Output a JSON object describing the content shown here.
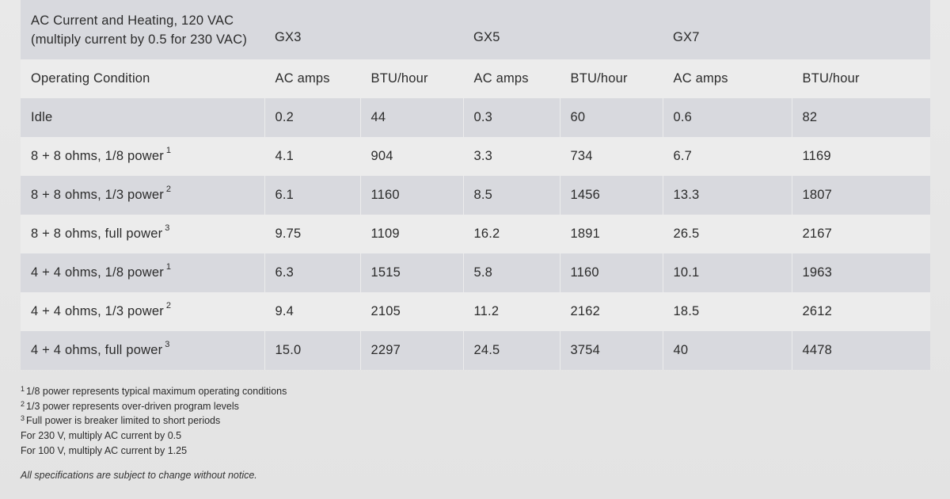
{
  "table": {
    "title_line1": "AC Current and Heating, 120 VAC",
    "title_line2": "(multiply current by 0.5 for 230 VAC)",
    "models": [
      "GX3",
      "GX5",
      "GX7"
    ],
    "header": {
      "condition": "Operating Condition",
      "amps": "AC amps",
      "btu": "BTU/hour"
    },
    "rows": [
      {
        "label": "Idle",
        "sup": "",
        "cells": [
          "0.2",
          "44",
          "0.3",
          "60",
          "0.6",
          "82"
        ]
      },
      {
        "label": "8 + 8 ohms, 1/8 power",
        "sup": "1",
        "cells": [
          "4.1",
          "904",
          "3.3",
          "734",
          "6.7",
          "1169"
        ]
      },
      {
        "label": "8 + 8 ohms, 1/3 power",
        "sup": "2",
        "cells": [
          "6.1",
          "1160",
          "8.5",
          "1456",
          "13.3",
          "1807"
        ]
      },
      {
        "label": "8 + 8 ohms, full power",
        "sup": "3",
        "cells": [
          "9.75",
          "1109",
          "16.2",
          "1891",
          "26.5",
          "2167"
        ]
      },
      {
        "label": "4 + 4 ohms, 1/8 power",
        "sup": "1",
        "cells": [
          "6.3",
          "1515",
          "5.8",
          "1160",
          "10.1",
          "1963"
        ]
      },
      {
        "label": "4 + 4 ohms, 1/3 power",
        "sup": "2",
        "cells": [
          "9.4",
          "2105",
          "11.2",
          "2162",
          "18.5",
          "2612"
        ]
      },
      {
        "label": "4 + 4 ohms, full power",
        "sup": "3",
        "cells": [
          "15.0",
          "2297",
          "24.5",
          "3754",
          "40",
          "4478"
        ]
      }
    ]
  },
  "footnotes": [
    {
      "sup": "1",
      "text": "1/8 power represents typical maximum operating conditions"
    },
    {
      "sup": "2",
      "text": "1/3 power represents over-driven program levels"
    },
    {
      "sup": "3",
      "text": "Full power is breaker limited to short periods"
    },
    {
      "sup": "",
      "text": "For 230 V, multiply AC current by 0.5"
    },
    {
      "sup": "",
      "text": "For 100 V, multiply AC current by 1.25"
    }
  ],
  "disclaimer": "All specifications are subject to change without notice.",
  "colors": {
    "shade_row": "#d8d9de",
    "light_row": "#ececec",
    "background": "#e6e6e6",
    "text": "#2b2b2b"
  }
}
